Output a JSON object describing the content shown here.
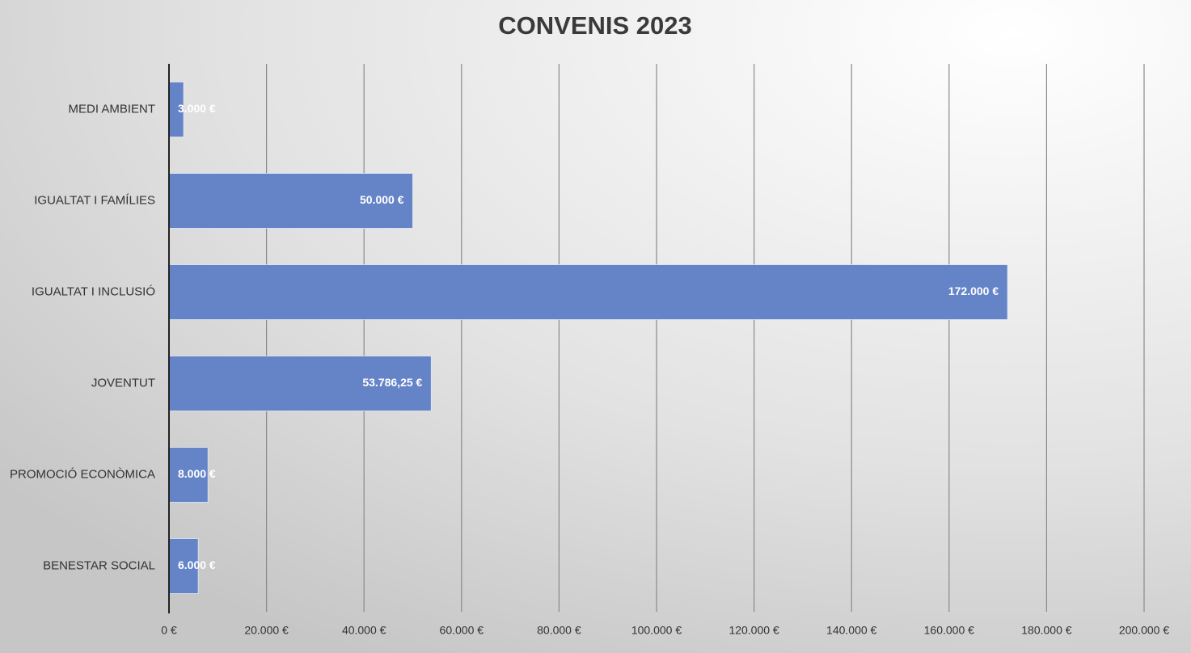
{
  "chart_data": {
    "type": "hbar",
    "title": "CONVENIS 2023",
    "categories": [
      "MEDI AMBIENT",
      "IGUALTAT I FAMÍLIES",
      "IGUALTAT I INCLUSIÓ",
      "JOVENTUT",
      "PROMOCIÓ ECONÒMICA",
      "BENESTAR SOCIAL"
    ],
    "values": [
      3000,
      50000,
      172000,
      53786.25,
      8000,
      6000
    ],
    "value_labels": [
      "3.000 €",
      "50.000 €",
      "172.000 €",
      "53.786,25 €",
      "8.000 €",
      "6.000 €"
    ],
    "color": "#6584c8",
    "xlim": [
      0,
      200000
    ],
    "xticks": [
      {
        "value": 0,
        "label": "0 €"
      },
      {
        "value": 20000,
        "label": "20.000 €"
      },
      {
        "value": 40000,
        "label": "40.000 €"
      },
      {
        "value": 60000,
        "label": "60.000 €"
      },
      {
        "value": 80000,
        "label": "80.000 €"
      },
      {
        "value": 100000,
        "label": "100.000 €"
      },
      {
        "value": 120000,
        "label": "120.000 €"
      },
      {
        "value": 140000,
        "label": "140.000 €"
      },
      {
        "value": 160000,
        "label": "160.000 €"
      },
      {
        "value": 180000,
        "label": "180.000 €"
      },
      {
        "value": 200000,
        "label": "200.000 €"
      }
    ],
    "grid": true
  }
}
